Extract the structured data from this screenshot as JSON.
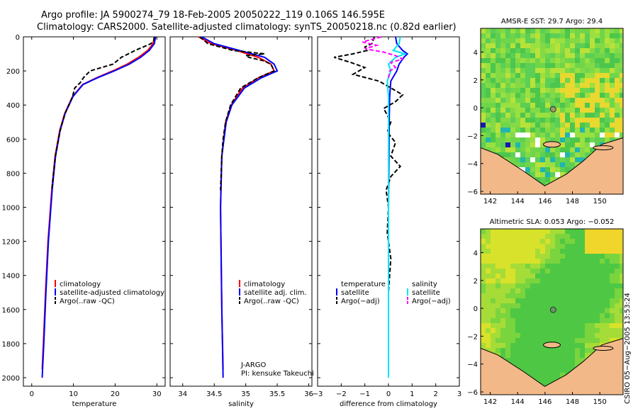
{
  "header": {
    "title_line1": "Argo profile: JA 5900274_79 18-Feb-2005 20050222_119 0.106S 146.595E",
    "title_line2": "Climatology: CARS2000. Satellite-adjusted climatology: synTS_20050218.nc (0.82d earlier)"
  },
  "colors": {
    "climatology": "#ff0000",
    "satellite": "#0000ff",
    "argo": "#000000",
    "salinity_sat": "#00e5ee",
    "salinity_argo": "#ff00ff",
    "land": "#f2b888"
  },
  "chart_data": [
    {
      "type": "line",
      "id": "temperature",
      "xlabel": "temperature",
      "ylabel": "",
      "xlim": [
        -2,
        32
      ],
      "ylim": [
        0,
        2050
      ],
      "y_inverted": true,
      "xticks": [
        "0",
        "10",
        "20",
        "30"
      ],
      "yticks": [
        "0",
        "200",
        "400",
        "600",
        "800",
        "1000",
        "1200",
        "1400",
        "1600",
        "1800",
        "2000"
      ],
      "legend": [
        "climatology",
        "satellite-adjusted climatology",
        "Argo(..raw -QC)"
      ],
      "series": [
        {
          "name": "climatology",
          "depth": [
            0,
            40,
            80,
            120,
            160,
            200,
            240,
            280,
            350,
            450,
            550,
            700,
            900,
            1200,
            1500,
            1800,
            1950
          ],
          "values": [
            29.4,
            29.1,
            27.8,
            25.6,
            22.9,
            19.4,
            15.6,
            12.2,
            9.8,
            7.9,
            6.7,
            5.6,
            4.8,
            3.9,
            3.3,
            2.8,
            2.5
          ]
        },
        {
          "name": "satellite-adjusted climatology",
          "depth": [
            0,
            40,
            80,
            120,
            160,
            200,
            240,
            280,
            350,
            450,
            550,
            700,
            900,
            1200,
            1500,
            1800,
            2000
          ],
          "values": [
            29.7,
            29.4,
            28.2,
            26.1,
            23.4,
            19.8,
            15.8,
            12.3,
            9.9,
            8.0,
            6.8,
            5.7,
            4.9,
            4.0,
            3.4,
            2.9,
            2.5
          ]
        },
        {
          "name": "Argo(..raw -QC)",
          "depth": [
            0,
            20,
            40,
            80,
            120,
            160,
            200,
            240,
            270,
            300,
            350,
            450,
            550,
            700,
            900
          ],
          "values": [
            29.4,
            29.3,
            28.6,
            24.8,
            21.5,
            19.5,
            14.0,
            12.4,
            11.6,
            10.3,
            9.8,
            8.0,
            6.8,
            5.7,
            4.8
          ]
        }
      ]
    },
    {
      "type": "line",
      "id": "salinity",
      "xlabel": "salinity",
      "ylabel": "",
      "xlim": [
        33.8,
        36.05
      ],
      "ylim": [
        0,
        2050
      ],
      "y_inverted": true,
      "xticks": [
        "34",
        "34.5",
        "35",
        "35.5",
        "36"
      ],
      "legend": [
        "climatology",
        "satellite adj. clim.",
        "Argo(..raw -QC)"
      ],
      "annotation": [
        "J-ARGO",
        "PI: kensuke Takeuchi"
      ],
      "series": [
        {
          "name": "climatology",
          "depth": [
            0,
            40,
            80,
            120,
            160,
            200,
            240,
            300,
            400,
            500,
            700,
            1000,
            1300,
            1600,
            1950
          ],
          "values": [
            34.25,
            34.45,
            34.85,
            35.2,
            35.4,
            35.45,
            35.2,
            34.95,
            34.77,
            34.68,
            34.62,
            34.6,
            34.61,
            34.62,
            34.64
          ]
        },
        {
          "name": "satellite adj. clim.",
          "depth": [
            0,
            40,
            80,
            120,
            160,
            200,
            240,
            300,
            400,
            500,
            700,
            1000,
            1300,
            1600,
            2000
          ],
          "values": [
            34.3,
            34.5,
            34.9,
            35.3,
            35.45,
            35.5,
            35.25,
            34.98,
            34.78,
            34.69,
            34.62,
            34.6,
            34.61,
            34.62,
            34.64
          ]
        },
        {
          "name": "Argo(..raw -QC)",
          "depth": [
            0,
            40,
            80,
            100,
            110,
            120,
            140,
            160,
            200,
            240,
            300,
            400,
            500,
            600,
            700,
            900
          ],
          "values": [
            34.27,
            34.4,
            34.8,
            35.3,
            35.0,
            35.05,
            35.28,
            35.4,
            35.45,
            35.2,
            34.92,
            34.76,
            34.68,
            34.64,
            34.62,
            34.6
          ]
        }
      ]
    },
    {
      "type": "line",
      "id": "difference",
      "xlabel": "difference from climatology",
      "ylabel": "",
      "xlim": [
        -3,
        3
      ],
      "ylim": [
        0,
        2050
      ],
      "y_inverted": true,
      "xticks": [
        "−3",
        "−2",
        "−1",
        "0",
        "1",
        "2",
        "3"
      ],
      "legend_temperature": [
        "temperature",
        "satellite",
        "Argo(−adj)"
      ],
      "legend_salinity": [
        "salinity",
        "satellite",
        "Argo(−adj)"
      ],
      "series": [
        {
          "name": "temperature satellite",
          "depth": [
            0,
            40,
            80,
            100,
            120,
            160,
            200,
            260,
            350,
            500,
            700,
            1000,
            1500,
            2000
          ],
          "values": [
            0.3,
            0.35,
            0.6,
            0.8,
            0.65,
            0.45,
            0.35,
            0.1,
            0.05,
            0.03,
            0.02,
            0.0,
            0.0,
            0.0
          ]
        },
        {
          "name": "temperature Argo(-adj)",
          "depth": [
            0,
            40,
            60,
            80,
            100,
            120,
            150,
            180,
            220,
            260,
            300,
            340,
            380,
            420,
            500,
            560,
            620,
            700,
            760,
            820,
            900,
            1000,
            1150,
            1300,
            1500
          ],
          "values": [
            -0.6,
            -0.7,
            -1.0,
            -0.9,
            -1.5,
            -2.3,
            -1.6,
            -1.0,
            -1.5,
            -0.4,
            0.1,
            0.6,
            0.3,
            -0.2,
            0.1,
            -0.05,
            0.3,
            0.1,
            0.5,
            0.1,
            -0.1,
            0.0,
            -0.05,
            0.1,
            0.0
          ]
        },
        {
          "name": "salinity satellite",
          "depth": [
            0,
            40,
            80,
            100,
            120,
            160,
            200,
            260,
            350,
            500,
            700,
            1000,
            1500,
            2000
          ],
          "values": [
            0.5,
            0.45,
            0.2,
            0.7,
            0.3,
            0.0,
            0.1,
            -0.05,
            0.0,
            0.0,
            0.0,
            0.0,
            0.0,
            0.0
          ]
        },
        {
          "name": "salinity Argo(-adj)",
          "depth": [
            0,
            30,
            50,
            70,
            90,
            110,
            130,
            150,
            180,
            200,
            240
          ],
          "values": [
            -0.3,
            -1.1,
            -0.5,
            -1.0,
            -0.2,
            0.3,
            0.6,
            0.1,
            0.3,
            0.05,
            0.0
          ]
        }
      ]
    },
    {
      "type": "heatmap",
      "id": "sst_map",
      "title": "AMSR-E SST: 29.7 Argo: 29.4",
      "xticks": [
        "142",
        "144",
        "146",
        "148",
        "150"
      ],
      "yticks": [
        "4",
        "2",
        "0",
        "−2",
        "−4",
        "−6"
      ],
      "xlim": [
        141.3,
        151.7
      ],
      "ylim": [
        -6.2,
        5.7
      ],
      "argo_position": {
        "lon": 146.595,
        "lat": -0.106
      }
    },
    {
      "type": "heatmap",
      "id": "sla_map",
      "title": "Altimetric SLA: 0.053 Argo: −0.052",
      "xticks": [
        "142",
        "144",
        "146",
        "148",
        "150"
      ],
      "yticks": [
        "4",
        "2",
        "0",
        "−2",
        "−4",
        "−6"
      ],
      "xlim": [
        141.3,
        151.7
      ],
      "ylim": [
        -6.2,
        5.7
      ],
      "argo_position": {
        "lon": 146.595,
        "lat": -0.106
      }
    }
  ],
  "footer": {
    "stamp": "CSIRO 05−Aug−2005 13:53:24"
  }
}
